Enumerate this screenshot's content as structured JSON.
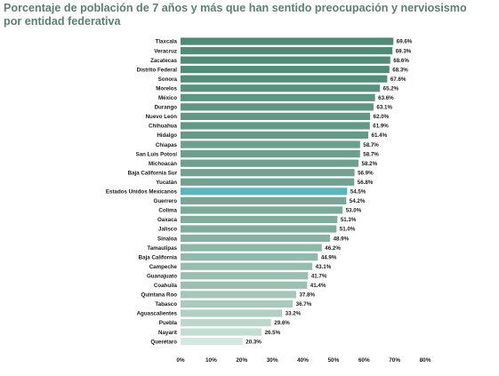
{
  "page": {
    "title_line1": "Porcentaje de población de 7 años y más que han sentido preocupación y nerviosismo",
    "title_line2": "por entidad federativa"
  },
  "chart_data": {
    "type": "bar",
    "orientation": "horizontal",
    "title": "Porcentaje de población de 7 años y más que han sentido preocupación y nerviosismo por entidad federativa",
    "xlabel": "",
    "ylabel": "",
    "xlim": [
      0,
      80
    ],
    "x_ticks": [
      "0%",
      "10%",
      "20%",
      "30%",
      "40%",
      "50%",
      "60%",
      "70%",
      "80%"
    ],
    "grid": false,
    "legend": "none",
    "highlight": "Estados Unidos Mexicanos",
    "colors": {
      "dark": "#4e8a75",
      "light": "#d5e8e0",
      "highlight": "#5db5c0"
    },
    "categories": [
      "Tlaxcala",
      "Veracruz",
      "Zacatecas",
      "Distrito Federal",
      "Sonora",
      "Morelos",
      "México",
      "Durango",
      "Nuevo León",
      "Chihuahua",
      "Hidalgo",
      "Chiapas",
      "San Luis Potosí",
      "Michoacán",
      "Baja California Sur",
      "Yucatán",
      "Estados Unidos Mexicanos",
      "Guerrero",
      "Colima",
      "Oaxaca",
      "Jalisco",
      "Sinaloa",
      "Tamaulipas",
      "Baja California",
      "Campeche",
      "Guanajuato",
      "Coahuila",
      "Quintana Roo",
      "Tabasco",
      "Aguascalientes",
      "Puebla",
      "Nayarit",
      "Querétaro"
    ],
    "values": [
      69.6,
      69.3,
      68.6,
      68.3,
      67.6,
      65.2,
      63.6,
      63.1,
      62.0,
      61.9,
      61.4,
      58.7,
      58.7,
      58.2,
      56.9,
      56.8,
      54.5,
      54.2,
      53.0,
      51.3,
      51.0,
      48.9,
      46.2,
      44.9,
      43.1,
      41.7,
      41.4,
      37.8,
      36.7,
      33.2,
      29.6,
      26.5,
      20.3
    ],
    "value_labels": [
      "69.6%",
      "69.3%",
      "68.6%",
      "68.3%",
      "67.6%",
      "65.2%",
      "63.6%",
      "63.1%",
      "62.0%",
      "61.9%",
      "61.4%",
      "58.7%",
      "58.7%",
      "58.2%",
      "56.9%",
      "56.8%",
      "54.5%",
      "54.2%",
      "53.0%",
      "51.3%",
      "51.0%",
      "48.9%",
      "46.2%",
      "44.9%",
      "43.1%",
      "41.7%",
      "41.4%",
      "37.8%",
      "36.7%",
      "33.2%",
      "29.6%",
      "26.5%",
      "20.3%"
    ]
  }
}
